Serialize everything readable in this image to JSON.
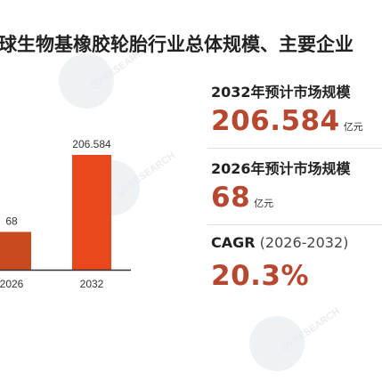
{
  "title": "球生物基橡胶轮胎行业总体规模、主要企业",
  "stats": {
    "market_2032": {
      "label": "2032年预计市场规模",
      "value": "206.584",
      "unit": "亿元"
    },
    "market_2026": {
      "label": "2026年预计市场规模",
      "value": "68",
      "unit": "亿元"
    },
    "cagr": {
      "label": "CAGR",
      "range": "(2026-2032)",
      "value": "20.3%"
    }
  },
  "chart_data": {
    "type": "bar",
    "categories": [
      "2026",
      "2032"
    ],
    "series": [
      {
        "values": [
          68,
          206.584
        ]
      }
    ],
    "data_labels": [
      "68",
      "206.584"
    ],
    "colors": {
      "bar_2026": "#c94a1e",
      "bar_2032": "#e8481c",
      "axis": "#333333"
    }
  }
}
